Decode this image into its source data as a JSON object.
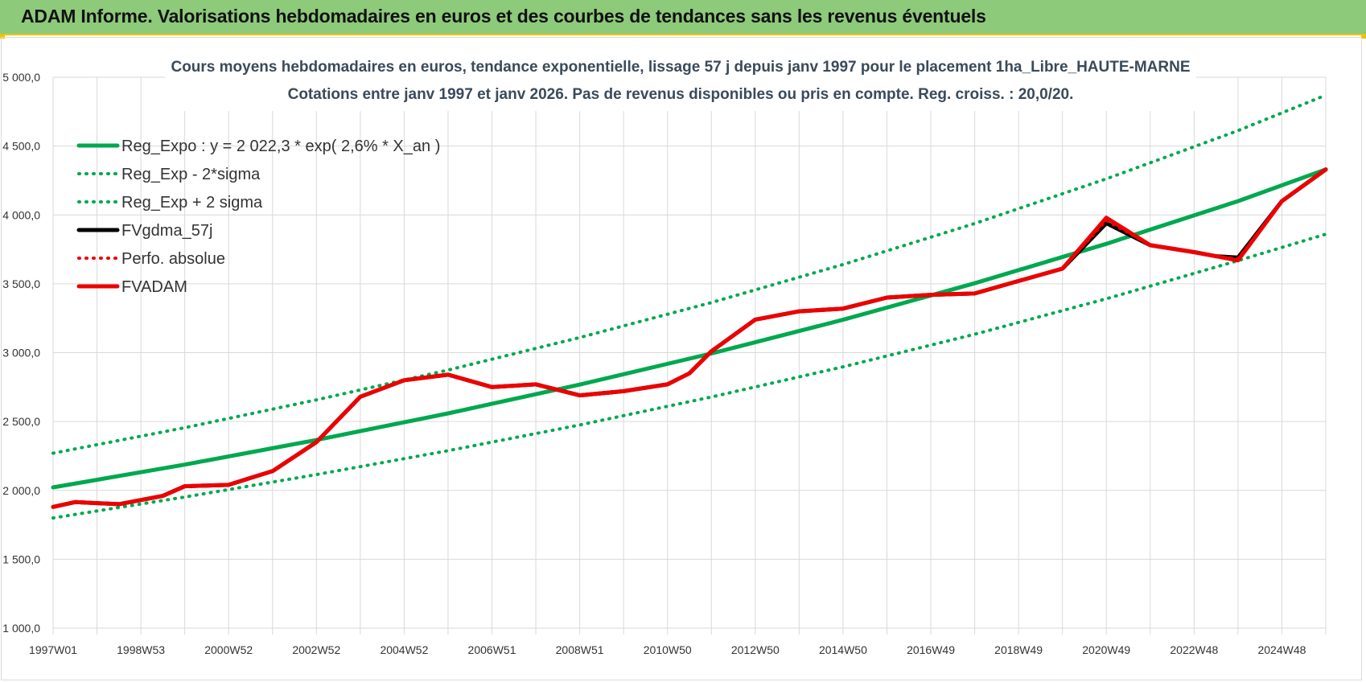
{
  "header": {
    "title": "ADAM Informe. Valorisations hebdomadaires en euros et des courbes de tendances sans les revenus éventuels"
  },
  "chart_data": {
    "type": "line",
    "title": "Cours moyens  hebdomadaires en euros, tendance exponentielle, lissage 57 j depuis janv 1997 pour le placement 1ha_Libre_HAUTE-MARNE",
    "subtitle": "Cotations entre janv 1997 et janv 2026. Pas de revenus disponibles ou pris en compte. Reg. croiss. : 20,0/20.",
    "xlabel": "",
    "ylabel": "",
    "x_range": [
      1997.0,
      2026.0
    ],
    "ylim": [
      1000,
      5000
    ],
    "y_ticks": [
      "1 000,0",
      "1 500,0",
      "2 000,0",
      "2 500,0",
      "3 000,0",
      "3 500,0",
      "4 000,0",
      "4 500,0",
      "5 000,0"
    ],
    "y_tick_values": [
      1000,
      1500,
      2000,
      2500,
      3000,
      3500,
      4000,
      4500,
      5000
    ],
    "x_ticks": [
      "1997W01",
      "1998W53",
      "2000W52",
      "2002W52",
      "2004W52",
      "2006W51",
      "2008W51",
      "2010W50",
      "2012W50",
      "2014W50",
      "2016W49",
      "2018W49",
      "2020W49",
      "2022W48",
      "2024W48"
    ],
    "x_tick_values": [
      1997.0,
      1999.0,
      2001.0,
      2003.0,
      2005.0,
      2007.0,
      2009.0,
      2011.0,
      2013.0,
      2015.0,
      2017.0,
      2019.0,
      2021.0,
      2023.0,
      2025.0
    ],
    "grid": true,
    "legend_position": "top-left",
    "colors": {
      "green": "#00a84f",
      "red": "#ee0000",
      "black": "#000000"
    },
    "series": [
      {
        "name": "Reg_Expo : y = 2 022,3 * exp( 2,6% *  X_an )",
        "style": "solid",
        "color": "#00a84f",
        "x": [
          1997.0,
          2000.0,
          2003.0,
          2006.0,
          2009.0,
          2012.0,
          2015.0,
          2018.0,
          2021.0,
          2024.0,
          2026.0
        ],
        "values": [
          2022,
          2187,
          2366,
          2559,
          2768,
          2994,
          3239,
          3504,
          3790,
          4100,
          4330
        ]
      },
      {
        "name": "Reg_Exp - 2*sigma",
        "style": "dotted",
        "color": "#00a84f",
        "x": [
          1997.0,
          2000.0,
          2003.0,
          2006.0,
          2009.0,
          2012.0,
          2015.0,
          2018.0,
          2021.0,
          2024.0,
          2026.0
        ],
        "values": [
          1800,
          1952,
          2115,
          2288,
          2475,
          2678,
          2897,
          3134,
          3391,
          3668,
          3860
        ]
      },
      {
        "name": "Reg_Exp + 2 sigma",
        "style": "dotted",
        "color": "#00a84f",
        "x": [
          1997.0,
          2000.0,
          2003.0,
          2006.0,
          2009.0,
          2012.0,
          2015.0,
          2018.0,
          2021.0,
          2024.0,
          2026.0
        ],
        "values": [
          2270,
          2455,
          2657,
          2874,
          3110,
          3364,
          3640,
          3938,
          4262,
          4612,
          4870
        ]
      },
      {
        "name": "FVgdma_57j",
        "style": "solid",
        "color": "#000000",
        "x": [
          1997.0,
          1997.5,
          1998.5,
          1999.5,
          2000.0,
          2001.0,
          2001.5,
          2002.0,
          2003.0,
          2004.0,
          2005.0,
          2006.0,
          2007.0,
          2008.0,
          2009.0,
          2010.0,
          2011.0,
          2011.5,
          2012.0,
          2013.0,
          2014.0,
          2015.0,
          2016.0,
          2017.0,
          2018.0,
          2019.0,
          2020.0,
          2021.0,
          2022.0,
          2023.0,
          2023.5,
          2024.0,
          2025.0,
          2026.0
        ],
        "values": [
          1880,
          1915,
          1900,
          1960,
          2030,
          2040,
          2090,
          2140,
          2350,
          2680,
          2800,
          2840,
          2750,
          2770,
          2690,
          2720,
          2770,
          2850,
          3010,
          3240,
          3300,
          3320,
          3400,
          3420,
          3430,
          3520,
          3610,
          3940,
          3780,
          3730,
          3700,
          3690,
          4100,
          4330
        ]
      },
      {
        "name": "Perfo. absolue",
        "style": "dotted",
        "color": "#ee0000",
        "x": [
          1997.0,
          1997.5,
          1998.5,
          1999.5,
          2000.0,
          2001.0,
          2001.5,
          2002.0,
          2003.0,
          2004.0,
          2005.0,
          2006.0,
          2007.0,
          2008.0,
          2009.0,
          2010.0,
          2011.0,
          2011.5,
          2012.0,
          2013.0,
          2014.0,
          2015.0,
          2016.0,
          2017.0,
          2018.0,
          2019.0,
          2020.0,
          2021.0,
          2022.0,
          2023.0,
          2023.5,
          2024.0,
          2025.0,
          2026.0
        ],
        "values": [
          1880,
          1915,
          1900,
          1960,
          2030,
          2040,
          2090,
          2140,
          2350,
          2680,
          2800,
          2840,
          2750,
          2770,
          2690,
          2720,
          2770,
          2850,
          3010,
          3240,
          3300,
          3320,
          3400,
          3420,
          3430,
          3520,
          3610,
          3960,
          3780,
          3730,
          3700,
          3680,
          4100,
          4330
        ]
      },
      {
        "name": "FVADAM",
        "style": "solid",
        "color": "#ee0000",
        "x": [
          1997.0,
          1997.5,
          1998.5,
          1999.5,
          2000.0,
          2001.0,
          2001.5,
          2002.0,
          2003.0,
          2004.0,
          2005.0,
          2006.0,
          2007.0,
          2008.0,
          2009.0,
          2010.0,
          2011.0,
          2011.5,
          2012.0,
          2013.0,
          2014.0,
          2015.0,
          2016.0,
          2017.0,
          2018.0,
          2019.0,
          2020.0,
          2021.0,
          2022.0,
          2023.0,
          2023.5,
          2024.0,
          2025.0,
          2026.0
        ],
        "values": [
          1880,
          1915,
          1900,
          1960,
          2030,
          2040,
          2090,
          2140,
          2350,
          2680,
          2800,
          2840,
          2750,
          2770,
          2690,
          2720,
          2770,
          2850,
          3010,
          3240,
          3300,
          3320,
          3400,
          3420,
          3430,
          3520,
          3610,
          3980,
          3780,
          3730,
          3700,
          3670,
          4100,
          4330
        ]
      }
    ]
  }
}
